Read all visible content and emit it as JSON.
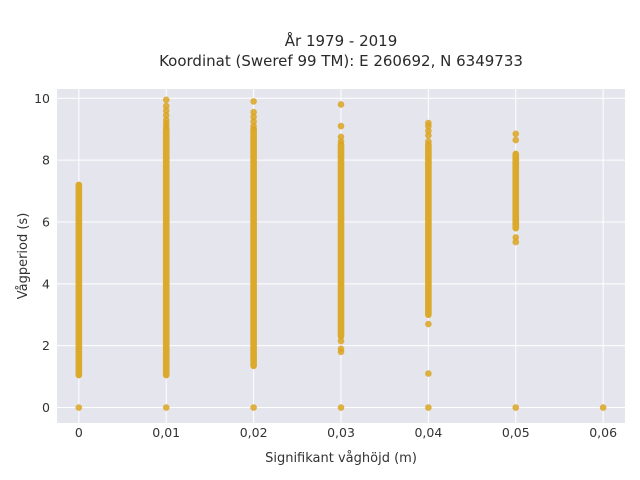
{
  "chart_data": {
    "type": "scatter",
    "title_line1": "År 1979 - 2019",
    "title_line2": "Koordinat (Sweref 99 TM): E 260692, N 6349733",
    "xlabel": "Signifikant våghöjd (m)",
    "ylabel": "Vågperiod (s)",
    "xlim": [
      -0.0025,
      0.0625
    ],
    "ylim": [
      -0.5,
      10.3
    ],
    "x_ticks": [
      0,
      0.01,
      0.02,
      0.03,
      0.04,
      0.05,
      0.06
    ],
    "x_tick_labels": [
      "0",
      "0,01",
      "0,02",
      "0,03",
      "0,04",
      "0,05",
      "0,06"
    ],
    "y_ticks": [
      0,
      2,
      4,
      6,
      8,
      10
    ],
    "y_tick_labels": [
      "0",
      "2",
      "4",
      "6",
      "8",
      "10"
    ],
    "grid": true,
    "colors": {
      "marker": "#DAA520",
      "background": "#E5E5EE",
      "grid": "#FFFFFF"
    },
    "series": [
      {
        "columns": [
          {
            "x": 0,
            "range": [
              1.05,
              7.2
            ],
            "points": [
              0
            ]
          },
          {
            "x": 0.01,
            "range": [
              1.05,
              9.0
            ],
            "points": [
              0,
              9.1,
              9.2,
              9.3,
              9.45,
              9.6,
              9.75,
              9.95
            ]
          },
          {
            "x": 0.02,
            "range": [
              1.35,
              9.0
            ],
            "points": [
              0,
              9.1,
              9.25,
              9.4,
              9.55,
              9.9
            ]
          },
          {
            "x": 0.03,
            "range": [
              2.3,
              8.5
            ],
            "points": [
              0,
              1.8,
              1.9,
              2.15,
              8.6,
              8.75,
              9.1,
              9.8
            ]
          },
          {
            "x": 0.04,
            "range": [
              3.0,
              8.5
            ],
            "points": [
              0,
              1.1,
              2.7,
              8.6,
              8.8,
              8.95,
              9.1,
              9.2
            ]
          },
          {
            "x": 0.05,
            "range": [
              5.8,
              8.2
            ],
            "points": [
              0,
              5.35,
              5.5,
              8.65,
              8.85
            ]
          },
          {
            "x": 0.06,
            "range": null,
            "points": [
              0
            ]
          }
        ]
      }
    ]
  }
}
